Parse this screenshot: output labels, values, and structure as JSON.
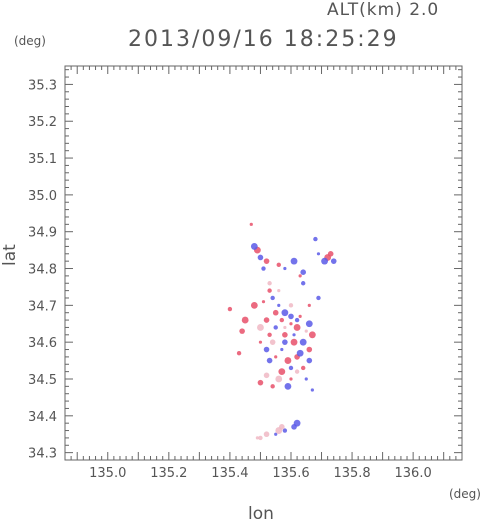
{
  "header": {
    "altitude": "ALT(km) 2.0",
    "timestamp": "2013/09/16 18:25:29"
  },
  "axes": {
    "y_unit": "(deg)",
    "x_unit": "(deg)",
    "y_label": "lat",
    "x_label": "lon"
  },
  "colors": {
    "positive": "#e8506a",
    "negative": "#5a5ae8",
    "frame": "#666666"
  },
  "chart_data": {
    "type": "scatter",
    "xlabel": "lon",
    "ylabel": "lat",
    "xlim": [
      134.86,
      136.16
    ],
    "ylim": [
      34.28,
      35.35
    ],
    "x_ticks": [
      "135.0",
      "135.2",
      "135.4",
      "135.6",
      "135.8",
      "136.0"
    ],
    "y_ticks": [
      "34.3",
      "34.4",
      "34.5",
      "34.6",
      "34.7",
      "34.8",
      "34.9",
      "35.0",
      "35.1",
      "35.2",
      "35.3"
    ],
    "grid": false,
    "series": [
      {
        "color": "#e8506a",
        "points": [
          [
            135.47,
            34.92
          ],
          [
            135.49,
            34.85
          ],
          [
            135.52,
            34.82
          ],
          [
            135.56,
            34.81
          ],
          [
            135.63,
            34.78
          ],
          [
            135.72,
            34.83
          ],
          [
            135.73,
            34.84
          ],
          [
            135.53,
            34.74
          ],
          [
            135.51,
            34.71
          ],
          [
            135.48,
            34.7
          ],
          [
            135.55,
            34.68
          ],
          [
            135.57,
            34.66
          ],
          [
            135.6,
            34.65
          ],
          [
            135.62,
            34.64
          ],
          [
            135.58,
            34.62
          ],
          [
            135.53,
            34.62
          ],
          [
            135.5,
            34.6
          ],
          [
            135.45,
            34.66
          ],
          [
            135.44,
            34.63
          ],
          [
            135.43,
            34.57
          ],
          [
            135.55,
            34.56
          ],
          [
            135.59,
            34.55
          ],
          [
            135.62,
            34.56
          ],
          [
            135.64,
            34.53
          ],
          [
            135.6,
            34.5
          ],
          [
            135.57,
            34.52
          ],
          [
            135.5,
            34.49
          ],
          [
            135.54,
            34.48
          ],
          [
            135.63,
            34.67
          ],
          [
            135.67,
            34.62
          ],
          [
            135.66,
            34.58
          ],
          [
            135.4,
            34.69
          ],
          [
            135.66,
            34.7
          ],
          [
            135.61,
            34.6
          ],
          [
            135.52,
            34.66
          ]
        ]
      },
      {
        "color": "#5a5ae8",
        "points": [
          [
            135.48,
            34.86
          ],
          [
            135.5,
            34.83
          ],
          [
            135.51,
            34.8
          ],
          [
            135.58,
            34.8
          ],
          [
            135.61,
            34.82
          ],
          [
            135.64,
            34.79
          ],
          [
            135.68,
            34.88
          ],
          [
            135.69,
            34.84
          ],
          [
            135.71,
            34.82
          ],
          [
            135.74,
            34.82
          ],
          [
            135.54,
            34.72
          ],
          [
            135.56,
            34.7
          ],
          [
            135.58,
            34.68
          ],
          [
            135.6,
            34.67
          ],
          [
            135.62,
            34.66
          ],
          [
            135.61,
            34.62
          ],
          [
            135.64,
            34.6
          ],
          [
            135.58,
            34.6
          ],
          [
            135.55,
            34.64
          ],
          [
            135.57,
            34.58
          ],
          [
            135.63,
            34.57
          ],
          [
            135.66,
            34.55
          ],
          [
            135.6,
            34.53
          ],
          [
            135.67,
            34.47
          ],
          [
            135.62,
            34.38
          ],
          [
            135.61,
            34.37
          ],
          [
            135.58,
            34.36
          ],
          [
            135.55,
            34.35
          ],
          [
            135.66,
            34.65
          ],
          [
            135.52,
            34.58
          ],
          [
            135.69,
            34.72
          ],
          [
            135.65,
            34.5
          ],
          [
            135.59,
            34.48
          ],
          [
            135.53,
            34.55
          ],
          [
            135.64,
            34.76
          ]
        ]
      },
      {
        "color": "#f0b8c4",
        "points": [
          [
            135.52,
            34.35
          ],
          [
            135.5,
            34.34
          ],
          [
            135.49,
            34.34
          ],
          [
            135.56,
            34.36
          ],
          [
            135.57,
            34.37
          ],
          [
            135.53,
            34.76
          ],
          [
            135.56,
            34.74
          ],
          [
            135.5,
            34.64
          ],
          [
            135.54,
            34.6
          ],
          [
            135.6,
            34.7
          ],
          [
            135.65,
            34.63
          ],
          [
            135.56,
            34.5
          ],
          [
            135.52,
            34.51
          ],
          [
            135.62,
            34.52
          ],
          [
            135.58,
            34.64
          ]
        ]
      }
    ]
  }
}
